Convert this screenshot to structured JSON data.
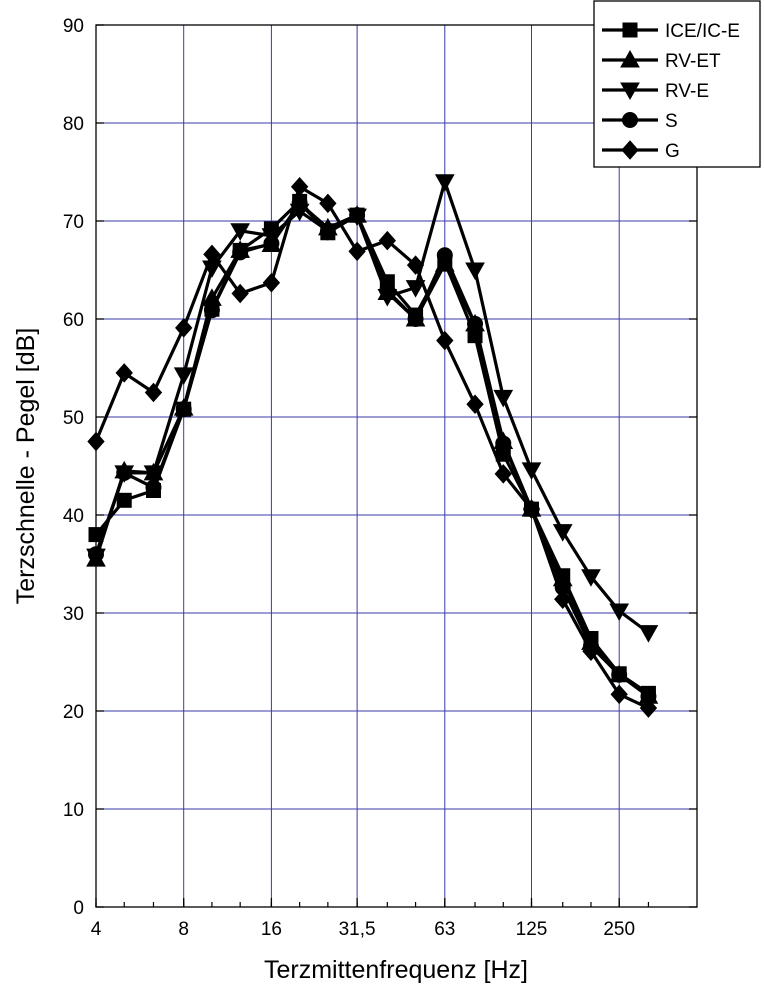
{
  "chart_data": {
    "type": "line",
    "title": "",
    "xlabel": "Terzmittenfrequenz [Hz]",
    "ylabel": "Terzschnelle - Pegel [dB]",
    "x_scale": "log2 (third-octave bands)",
    "ylim": [
      0,
      90
    ],
    "yticks": [
      0,
      10,
      20,
      30,
      40,
      50,
      60,
      70,
      80,
      90
    ],
    "xticks": [
      {
        "label": "4",
        "value": 4
      },
      {
        "label": "8",
        "value": 8
      },
      {
        "label": "16",
        "value": 16
      },
      {
        "label": "31,5",
        "value": 31.5
      },
      {
        "label": "63",
        "value": 63
      },
      {
        "label": "125",
        "value": 125
      },
      {
        "label": "250",
        "value": 250
      }
    ],
    "x": [
      4,
      5,
      6.3,
      8,
      10,
      12.5,
      16,
      20,
      25,
      31.5,
      40,
      50,
      63,
      80,
      100,
      125,
      160,
      200,
      250,
      315
    ],
    "grid": true,
    "grid_color": "#3a3aa8",
    "legend_position": "top-right",
    "series": [
      {
        "name": "ICE/IC-E",
        "marker": "square",
        "values": [
          38,
          41.5,
          42.5,
          50.8,
          61,
          67,
          69.2,
          72,
          68.8,
          70.6,
          63.8,
          60.4,
          65.8,
          58.3,
          46.2,
          40.6,
          33.8,
          27.4,
          23.8,
          21.8
        ]
      },
      {
        "name": "RV-ET",
        "marker": "triangle-up",
        "values": [
          35.5,
          44.5,
          44.3,
          50.9,
          62.1,
          67,
          67.6,
          71.8,
          69.3,
          70.6,
          62.7,
          60,
          65.6,
          59.5,
          47.5,
          40.6,
          33.5,
          27,
          23.7,
          21.5
        ]
      },
      {
        "name": "RV-E",
        "marker": "triangle-down",
        "values": [
          35.8,
          44.3,
          44.3,
          54.3,
          65.2,
          69,
          68.5,
          71,
          69,
          70.5,
          62.3,
          63.2,
          74,
          65,
          52,
          44.6,
          38.3,
          33.7,
          30.2,
          28
        ]
      },
      {
        "name": "S",
        "marker": "circle",
        "values": [
          36,
          44.3,
          42.8,
          50.8,
          60.9,
          66.8,
          67.7,
          71.8,
          68.9,
          70.6,
          62.9,
          60,
          66.5,
          59.5,
          47.3,
          40.6,
          32.6,
          26.6,
          23.7,
          21.5
        ]
      },
      {
        "name": "G",
        "marker": "diamond",
        "values": [
          47.5,
          54.5,
          52.5,
          59.1,
          66.6,
          62.6,
          63.7,
          73.5,
          71.8,
          66.9,
          68,
          65.5,
          57.8,
          51.3,
          44.2,
          40.6,
          31.4,
          26.1,
          21.7,
          20.3
        ]
      }
    ]
  }
}
